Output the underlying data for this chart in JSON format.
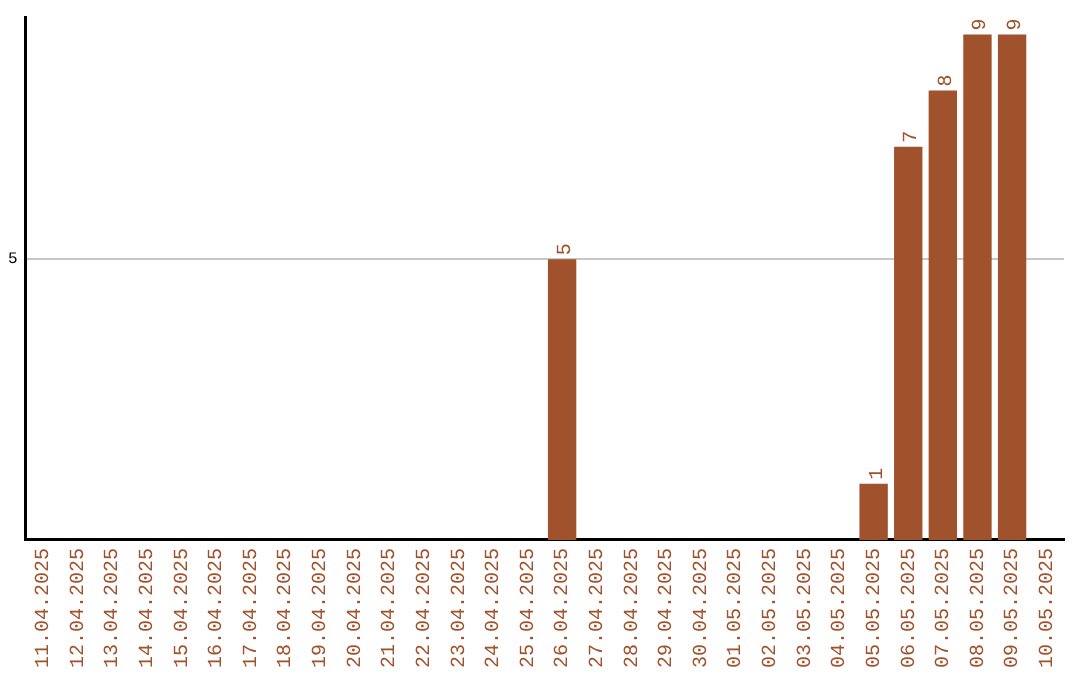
{
  "chart_data": {
    "type": "bar",
    "categories": [
      "11.04.2025",
      "12.04.2025",
      "13.04.2025",
      "14.04.2025",
      "15.04.2025",
      "16.04.2025",
      "17.04.2025",
      "18.04.2025",
      "19.04.2025",
      "20.04.2025",
      "21.04.2025",
      "22.04.2025",
      "23.04.2025",
      "24.04.2025",
      "25.04.2025",
      "26.04.2025",
      "27.04.2025",
      "28.04.2025",
      "29.04.2025",
      "30.04.2025",
      "01.05.2025",
      "02.05.2025",
      "03.05.2025",
      "04.05.2025",
      "05.05.2025",
      "06.05.2025",
      "07.05.2025",
      "08.05.2025",
      "09.05.2025",
      "10.05.2025"
    ],
    "values": [
      null,
      null,
      null,
      null,
      null,
      null,
      null,
      null,
      null,
      null,
      null,
      null,
      null,
      null,
      null,
      5,
      null,
      null,
      null,
      null,
      null,
      null,
      null,
      null,
      1,
      7,
      8,
      9,
      9,
      null
    ],
    "color": "#a0522d",
    "ylim": [
      0,
      9.3
    ],
    "yticks": [
      5
    ],
    "grid": "y",
    "data_labels": true,
    "legend": false
  }
}
